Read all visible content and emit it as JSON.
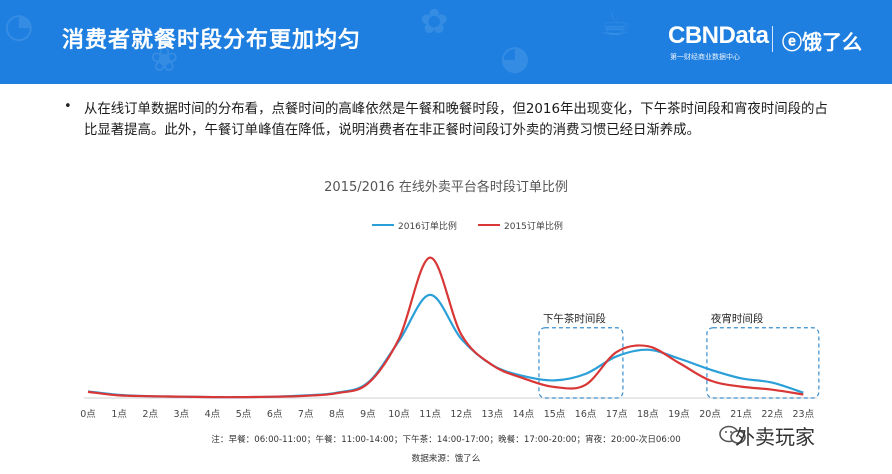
{
  "header": {
    "title": "消费者就餐时段分布更加均匀",
    "brand_name": "CBNData",
    "brand_sub": "第一财经商业数据中心",
    "partner": "饿了么",
    "colors": {
      "bar": "#1f7fe0"
    }
  },
  "body": {
    "bullet": "从在线订单数据时间的分布看，点餐时间的高峰依然是午餐和晚餐时段，但2016年出现变化，下午茶时间段和宵夜时间段的占比显著提高。此外，午餐订单峰值在降低，说明消费者在非正餐时间段订外卖的消费习惯已经日渐养成。"
  },
  "chart_data": {
    "type": "line",
    "title": "2015/2016 在线外卖平台各时段订单比例",
    "categories": [
      "0点",
      "1点",
      "2点",
      "3点",
      "4点",
      "5点",
      "6点",
      "7点",
      "8点",
      "9点",
      "10点",
      "11点",
      "12点",
      "13点",
      "14点",
      "15点",
      "16点",
      "17点",
      "18点",
      "19点",
      "20点",
      "21点",
      "22点",
      "23点"
    ],
    "series": [
      {
        "name": "2016订单比例",
        "color": "#2a9fd8",
        "values": [
          1.5,
          0.7,
          0.4,
          0.3,
          0.2,
          0.2,
          0.3,
          0.6,
          1.2,
          3.5,
          13,
          23.5,
          13.5,
          7.5,
          5,
          4,
          5.5,
          9.5,
          11,
          9,
          6.5,
          4.5,
          3.5,
          1.2
        ]
      },
      {
        "name": "2015订单比例",
        "color": "#d93636",
        "values": [
          1.4,
          0.6,
          0.4,
          0.3,
          0.2,
          0.2,
          0.3,
          0.5,
          1.1,
          3.3,
          13.5,
          32,
          14.5,
          7.5,
          4.5,
          2.5,
          3,
          10.5,
          11.8,
          8,
          4,
          2.6,
          1.9,
          0.8
        ]
      }
    ],
    "ylim": [
      0,
      36
    ],
    "grid": false,
    "legend": "top",
    "annotations": [
      {
        "label": "下午茶时间段",
        "from": 14.5,
        "to": 17.2,
        "ymin": 0,
        "ymax": 16
      },
      {
        "label": "夜宵时间段",
        "from": 19.9,
        "to": 23.5,
        "ymin": 0,
        "ymax": 16
      }
    ],
    "note": "注：早餐：06:00-11:00；午餐：11:00-14:00；下午茶：14:00-17:00；晚餐：17:00-20:00；宵夜：20:00-次日06:00",
    "source": "数据来源：饿了么"
  },
  "watermark": {
    "text": "外卖玩家",
    "icon": "wechat-icon"
  }
}
